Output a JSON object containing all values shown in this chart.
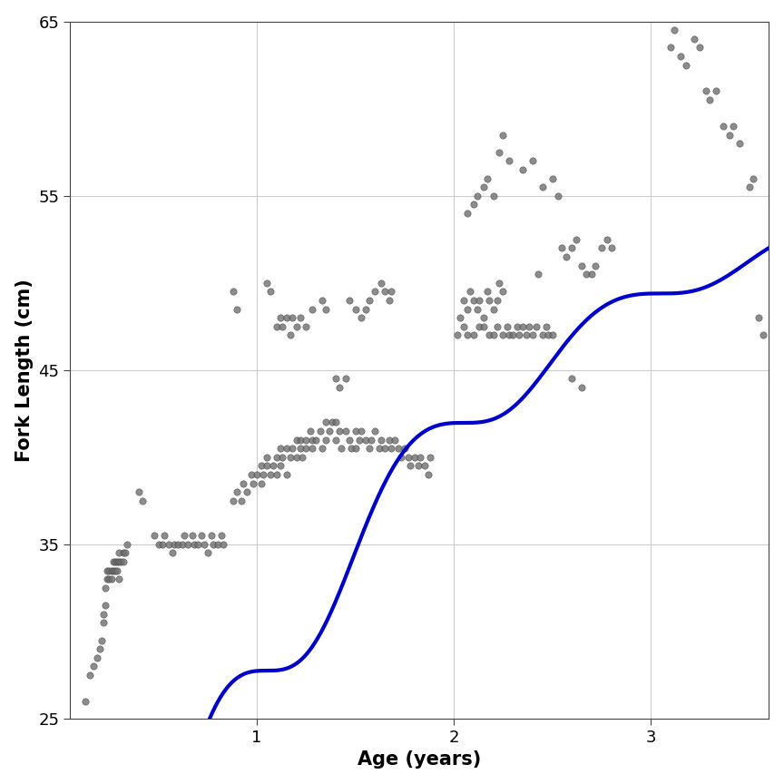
{
  "title": "",
  "xlabel": "Age (years)",
  "ylabel": "Fork Length (cm)",
  "xlim": [
    0.05,
    3.6
  ],
  "ylim": [
    25,
    65
  ],
  "xticks": [
    1,
    2,
    3
  ],
  "yticks": [
    25,
    35,
    45,
    55,
    65
  ],
  "curve_color": "#0000CC",
  "curve_lw": 3.0,
  "scatter_color": "#707070",
  "scatter_edgecolor": "#404040",
  "scatter_alpha": 0.8,
  "scatter_size": 28,
  "background_color": "#FFFFFF",
  "grid_color": "#CCCCCC",
  "model_Linf": 57.5,
  "model_K": 0.65,
  "model_t0": -0.08,
  "model_C": 1.0,
  "model_ts": 0.55,
  "label_fontsize": 15,
  "tick_fontsize": 13,
  "scatter_points": [
    [
      0.13,
      26.0
    ],
    [
      0.15,
      27.5
    ],
    [
      0.17,
      28.0
    ],
    [
      0.19,
      28.5
    ],
    [
      0.2,
      29.0
    ],
    [
      0.21,
      29.5
    ],
    [
      0.22,
      30.5
    ],
    [
      0.22,
      31.0
    ],
    [
      0.23,
      31.5
    ],
    [
      0.23,
      32.5
    ],
    [
      0.24,
      33.0
    ],
    [
      0.24,
      33.5
    ],
    [
      0.25,
      33.0
    ],
    [
      0.25,
      33.5
    ],
    [
      0.26,
      33.0
    ],
    [
      0.26,
      33.5
    ],
    [
      0.27,
      33.5
    ],
    [
      0.27,
      34.0
    ],
    [
      0.28,
      33.5
    ],
    [
      0.28,
      34.0
    ],
    [
      0.29,
      33.5
    ],
    [
      0.29,
      34.0
    ],
    [
      0.3,
      33.0
    ],
    [
      0.3,
      34.0
    ],
    [
      0.3,
      34.5
    ],
    [
      0.31,
      34.0
    ],
    [
      0.32,
      34.0
    ],
    [
      0.32,
      34.5
    ],
    [
      0.33,
      34.5
    ],
    [
      0.34,
      35.0
    ],
    [
      0.4,
      38.0
    ],
    [
      0.42,
      37.5
    ],
    [
      0.48,
      35.5
    ],
    [
      0.5,
      35.0
    ],
    [
      0.52,
      35.0
    ],
    [
      0.53,
      35.5
    ],
    [
      0.55,
      35.0
    ],
    [
      0.57,
      34.5
    ],
    [
      0.58,
      35.0
    ],
    [
      0.6,
      35.0
    ],
    [
      0.62,
      35.0
    ],
    [
      0.63,
      35.5
    ],
    [
      0.65,
      35.0
    ],
    [
      0.67,
      35.5
    ],
    [
      0.68,
      35.0
    ],
    [
      0.7,
      35.0
    ],
    [
      0.72,
      35.5
    ],
    [
      0.73,
      35.0
    ],
    [
      0.75,
      34.5
    ],
    [
      0.77,
      35.5
    ],
    [
      0.78,
      35.0
    ],
    [
      0.8,
      35.0
    ],
    [
      0.82,
      35.5
    ],
    [
      0.83,
      35.0
    ],
    [
      0.88,
      37.5
    ],
    [
      0.9,
      38.0
    ],
    [
      0.92,
      37.5
    ],
    [
      0.93,
      38.5
    ],
    [
      0.95,
      38.0
    ],
    [
      0.97,
      39.0
    ],
    [
      0.98,
      38.5
    ],
    [
      1.0,
      39.0
    ],
    [
      1.02,
      38.5
    ],
    [
      1.02,
      39.5
    ],
    [
      1.03,
      39.0
    ],
    [
      1.05,
      39.5
    ],
    [
      1.05,
      40.0
    ],
    [
      1.07,
      39.0
    ],
    [
      1.08,
      39.5
    ],
    [
      1.1,
      39.0
    ],
    [
      1.1,
      40.0
    ],
    [
      1.12,
      39.5
    ],
    [
      1.12,
      40.5
    ],
    [
      1.13,
      40.0
    ],
    [
      1.15,
      40.5
    ],
    [
      1.15,
      39.0
    ],
    [
      1.17,
      40.0
    ],
    [
      1.18,
      40.5
    ],
    [
      1.2,
      40.0
    ],
    [
      1.2,
      41.0
    ],
    [
      1.22,
      40.5
    ],
    [
      1.22,
      41.0
    ],
    [
      1.23,
      40.0
    ],
    [
      1.25,
      41.0
    ],
    [
      1.25,
      40.5
    ],
    [
      1.27,
      41.5
    ],
    [
      1.28,
      40.5
    ],
    [
      1.28,
      41.0
    ],
    [
      1.3,
      41.0
    ],
    [
      1.32,
      41.5
    ],
    [
      1.33,
      40.5
    ],
    [
      1.35,
      41.0
    ],
    [
      1.35,
      42.0
    ],
    [
      1.37,
      41.5
    ],
    [
      1.38,
      42.0
    ],
    [
      1.4,
      42.0
    ],
    [
      1.4,
      41.0
    ],
    [
      1.42,
      41.5
    ],
    [
      1.43,
      40.5
    ],
    [
      1.45,
      41.5
    ],
    [
      1.47,
      41.0
    ],
    [
      1.48,
      40.5
    ],
    [
      1.5,
      41.5
    ],
    [
      1.5,
      40.5
    ],
    [
      1.52,
      41.0
    ],
    [
      1.53,
      41.5
    ],
    [
      1.55,
      41.0
    ],
    [
      1.57,
      40.5
    ],
    [
      1.58,
      41.0
    ],
    [
      1.6,
      41.5
    ],
    [
      1.62,
      40.5
    ],
    [
      1.63,
      41.0
    ],
    [
      1.65,
      40.5
    ],
    [
      1.67,
      41.0
    ],
    [
      1.68,
      40.5
    ],
    [
      1.7,
      41.0
    ],
    [
      1.72,
      40.5
    ],
    [
      1.73,
      40.0
    ],
    [
      1.75,
      40.5
    ],
    [
      1.77,
      40.0
    ],
    [
      1.78,
      39.5
    ],
    [
      1.8,
      40.0
    ],
    [
      1.82,
      39.5
    ],
    [
      1.83,
      40.0
    ],
    [
      1.85,
      39.5
    ],
    [
      1.87,
      39.0
    ],
    [
      1.88,
      40.0
    ],
    [
      0.88,
      49.5
    ],
    [
      0.9,
      48.5
    ],
    [
      1.05,
      50.0
    ],
    [
      1.07,
      49.5
    ],
    [
      1.1,
      47.5
    ],
    [
      1.12,
      48.0
    ],
    [
      1.13,
      47.5
    ],
    [
      1.15,
      48.0
    ],
    [
      1.17,
      47.0
    ],
    [
      1.18,
      48.0
    ],
    [
      1.2,
      47.5
    ],
    [
      1.22,
      48.0
    ],
    [
      1.25,
      47.5
    ],
    [
      1.28,
      48.5
    ],
    [
      1.33,
      49.0
    ],
    [
      1.35,
      48.5
    ],
    [
      1.4,
      44.5
    ],
    [
      1.42,
      44.0
    ],
    [
      1.45,
      44.5
    ],
    [
      1.47,
      49.0
    ],
    [
      1.5,
      48.5
    ],
    [
      1.53,
      48.0
    ],
    [
      1.55,
      48.5
    ],
    [
      1.57,
      49.0
    ],
    [
      1.6,
      49.5
    ],
    [
      1.63,
      50.0
    ],
    [
      1.65,
      49.5
    ],
    [
      1.67,
      49.0
    ],
    [
      1.68,
      49.5
    ],
    [
      2.02,
      47.0
    ],
    [
      2.03,
      48.0
    ],
    [
      2.05,
      49.0
    ],
    [
      2.05,
      47.5
    ],
    [
      2.07,
      47.0
    ],
    [
      2.07,
      48.5
    ],
    [
      2.08,
      49.5
    ],
    [
      2.1,
      47.0
    ],
    [
      2.1,
      49.0
    ],
    [
      2.12,
      48.5
    ],
    [
      2.13,
      47.5
    ],
    [
      2.13,
      49.0
    ],
    [
      2.15,
      48.0
    ],
    [
      2.15,
      47.5
    ],
    [
      2.17,
      49.5
    ],
    [
      2.18,
      47.0
    ],
    [
      2.18,
      49.0
    ],
    [
      2.2,
      47.0
    ],
    [
      2.2,
      48.5
    ],
    [
      2.22,
      49.0
    ],
    [
      2.22,
      47.5
    ],
    [
      2.23,
      50.0
    ],
    [
      2.25,
      49.5
    ],
    [
      2.25,
      47.0
    ],
    [
      2.27,
      47.5
    ],
    [
      2.28,
      47.0
    ],
    [
      2.3,
      47.0
    ],
    [
      2.32,
      47.5
    ],
    [
      2.33,
      47.0
    ],
    [
      2.35,
      47.5
    ],
    [
      2.37,
      47.0
    ],
    [
      2.38,
      47.5
    ],
    [
      2.4,
      47.0
    ],
    [
      2.42,
      47.5
    ],
    [
      2.43,
      50.5
    ],
    [
      2.45,
      47.0
    ],
    [
      2.47,
      47.5
    ],
    [
      2.48,
      47.0
    ],
    [
      2.5,
      47.0
    ],
    [
      2.07,
      54.0
    ],
    [
      2.1,
      54.5
    ],
    [
      2.12,
      55.0
    ],
    [
      2.15,
      55.5
    ],
    [
      2.17,
      56.0
    ],
    [
      2.2,
      55.0
    ],
    [
      2.23,
      57.5
    ],
    [
      2.25,
      58.5
    ],
    [
      2.28,
      57.0
    ],
    [
      2.35,
      56.5
    ],
    [
      2.4,
      57.0
    ],
    [
      2.45,
      55.5
    ],
    [
      2.5,
      56.0
    ],
    [
      2.53,
      55.0
    ],
    [
      2.55,
      52.0
    ],
    [
      2.57,
      51.5
    ],
    [
      2.6,
      52.0
    ],
    [
      2.62,
      52.5
    ],
    [
      2.65,
      51.0
    ],
    [
      2.67,
      50.5
    ],
    [
      2.7,
      50.5
    ],
    [
      2.72,
      51.0
    ],
    [
      2.75,
      52.0
    ],
    [
      2.78,
      52.5
    ],
    [
      2.8,
      52.0
    ],
    [
      2.6,
      44.5
    ],
    [
      2.65,
      44.0
    ],
    [
      3.1,
      63.5
    ],
    [
      3.12,
      64.5
    ],
    [
      3.15,
      63.0
    ],
    [
      3.18,
      62.5
    ],
    [
      3.22,
      64.0
    ],
    [
      3.25,
      63.5
    ],
    [
      3.28,
      61.0
    ],
    [
      3.3,
      60.5
    ],
    [
      3.33,
      61.0
    ],
    [
      3.37,
      59.0
    ],
    [
      3.4,
      58.5
    ],
    [
      3.42,
      59.0
    ],
    [
      3.45,
      58.0
    ],
    [
      3.5,
      55.5
    ],
    [
      3.52,
      56.0
    ],
    [
      3.55,
      48.0
    ],
    [
      3.57,
      47.0
    ]
  ]
}
